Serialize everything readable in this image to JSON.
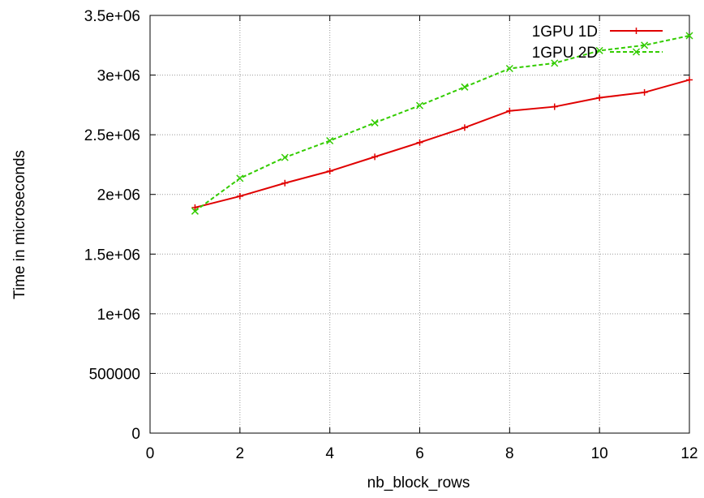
{
  "chart_data": {
    "type": "line",
    "title": "",
    "xlabel": "nb_block_rows",
    "ylabel": "Time in microseconds",
    "xlim": [
      0,
      12
    ],
    "ylim": [
      0,
      3500000
    ],
    "x_ticks": [
      0,
      2,
      4,
      6,
      8,
      10,
      12
    ],
    "x_tick_labels": [
      "0",
      "2",
      "4",
      "6",
      "8",
      "10",
      "12"
    ],
    "y_ticks": [
      0,
      500000,
      1000000,
      1500000,
      2000000,
      2500000,
      3000000,
      3500000
    ],
    "y_tick_labels": [
      "0",
      "500000",
      "1e+06",
      "1.5e+06",
      "2e+06",
      "2.5e+06",
      "3e+06",
      "3.5e+06"
    ],
    "grid": true,
    "legend_position": "top-right",
    "series": [
      {
        "name": "1GPU 1D",
        "color": "#e00000",
        "line_style": "solid",
        "marker": "plus",
        "x": [
          1,
          2,
          3,
          4,
          5,
          6,
          7,
          8,
          9,
          10,
          11,
          12
        ],
        "values": [
          1890000,
          1985000,
          2095000,
          2195000,
          2315000,
          2435000,
          2560000,
          2700000,
          2735000,
          2810000,
          2855000,
          2960000
        ]
      },
      {
        "name": "1GPU 2D",
        "color": "#33cc00",
        "line_style": "dashed",
        "marker": "cross",
        "x": [
          1,
          2,
          3,
          4,
          5,
          6,
          7,
          8,
          9,
          10,
          11,
          12
        ],
        "values": [
          1860000,
          2135000,
          2310000,
          2450000,
          2600000,
          2745000,
          2900000,
          3055000,
          3100000,
          3205000,
          3250000,
          3330000
        ]
      }
    ]
  }
}
